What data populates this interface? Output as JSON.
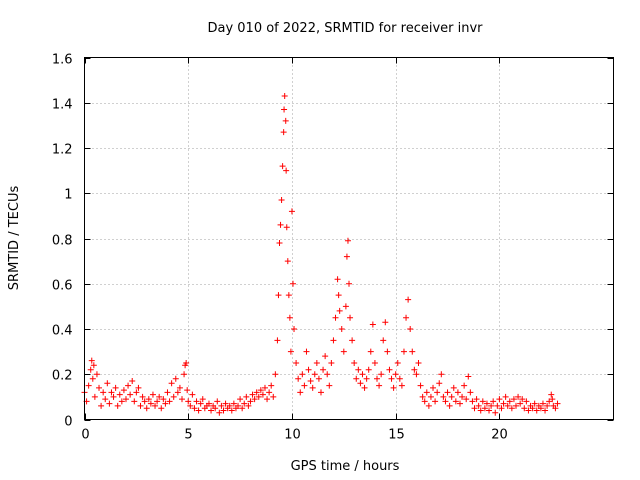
{
  "chart_data": {
    "type": "scatter",
    "title": "Day 010 of 2022, SRMTID for receiver invr",
    "xlabel": "GPS time / hours",
    "ylabel": "SRMTID / TECUs",
    "xlim": [
      0,
      25.5
    ],
    "ylim": [
      0,
      1.6
    ],
    "xticks": [
      0,
      5,
      10,
      15,
      20
    ],
    "xtick_labels": [
      "0",
      "5",
      "10",
      "15",
      "20"
    ],
    "yticks": [
      0,
      0.2,
      0.4,
      0.6,
      0.8,
      1,
      1.2,
      1.4,
      1.6
    ],
    "ytick_labels": [
      "0",
      "0.2",
      "0.4",
      "0.6",
      "0.8",
      "1",
      "1.2",
      "1.4",
      "1.6"
    ],
    "grid": true,
    "marker": "+",
    "color": "#ff0000",
    "series": [
      {
        "name": "SRMTID",
        "points": [
          [
            0.0,
            0.12
          ],
          [
            0.1,
            0.08
          ],
          [
            0.2,
            0.15
          ],
          [
            0.3,
            0.22
          ],
          [
            0.35,
            0.26
          ],
          [
            0.4,
            0.18
          ],
          [
            0.45,
            0.24
          ],
          [
            0.5,
            0.1
          ],
          [
            0.6,
            0.2
          ],
          [
            0.7,
            0.14
          ],
          [
            0.8,
            0.06
          ],
          [
            0.9,
            0.12
          ],
          [
            1.0,
            0.09
          ],
          [
            1.1,
            0.16
          ],
          [
            1.2,
            0.07
          ],
          [
            1.3,
            0.12
          ],
          [
            1.4,
            0.1
          ],
          [
            1.5,
            0.14
          ],
          [
            1.6,
            0.06
          ],
          [
            1.7,
            0.11
          ],
          [
            1.8,
            0.08
          ],
          [
            1.9,
            0.13
          ],
          [
            2.0,
            0.09
          ],
          [
            2.1,
            0.15
          ],
          [
            2.2,
            0.11
          ],
          [
            2.3,
            0.17
          ],
          [
            2.4,
            0.08
          ],
          [
            2.5,
            0.12
          ],
          [
            2.6,
            0.14
          ],
          [
            2.7,
            0.06
          ],
          [
            2.8,
            0.1
          ],
          [
            2.9,
            0.08
          ],
          [
            3.0,
            0.05
          ],
          [
            3.1,
            0.09
          ],
          [
            3.2,
            0.07
          ],
          [
            3.3,
            0.11
          ],
          [
            3.4,
            0.06
          ],
          [
            3.5,
            0.08
          ],
          [
            3.6,
            0.1
          ],
          [
            3.7,
            0.05
          ],
          [
            3.8,
            0.09
          ],
          [
            3.9,
            0.07
          ],
          [
            4.0,
            0.12
          ],
          [
            4.1,
            0.08
          ],
          [
            4.2,
            0.16
          ],
          [
            4.3,
            0.1
          ],
          [
            4.4,
            0.18
          ],
          [
            4.5,
            0.12
          ],
          [
            4.6,
            0.14
          ],
          [
            4.7,
            0.09
          ],
          [
            4.8,
            0.2
          ],
          [
            4.85,
            0.24
          ],
          [
            4.9,
            0.25
          ],
          [
            4.95,
            0.13
          ],
          [
            5.0,
            0.08
          ],
          [
            5.1,
            0.06
          ],
          [
            5.2,
            0.11
          ],
          [
            5.3,
            0.05
          ],
          [
            5.4,
            0.08
          ],
          [
            5.5,
            0.04
          ],
          [
            5.6,
            0.07
          ],
          [
            5.7,
            0.09
          ],
          [
            5.8,
            0.05
          ],
          [
            5.9,
            0.06
          ],
          [
            6.0,
            0.07
          ],
          [
            6.1,
            0.04
          ],
          [
            6.2,
            0.06
          ],
          [
            6.3,
            0.05
          ],
          [
            6.4,
            0.08
          ],
          [
            6.5,
            0.03
          ],
          [
            6.6,
            0.06
          ],
          [
            6.7,
            0.04
          ],
          [
            6.8,
            0.07
          ],
          [
            6.9,
            0.05
          ],
          [
            7.0,
            0.06
          ],
          [
            7.1,
            0.04
          ],
          [
            7.2,
            0.07
          ],
          [
            7.3,
            0.05
          ],
          [
            7.4,
            0.06
          ],
          [
            7.5,
            0.09
          ],
          [
            7.6,
            0.05
          ],
          [
            7.7,
            0.07
          ],
          [
            7.8,
            0.1
          ],
          [
            7.9,
            0.06
          ],
          [
            8.0,
            0.08
          ],
          [
            8.1,
            0.11
          ],
          [
            8.2,
            0.09
          ],
          [
            8.3,
            0.12
          ],
          [
            8.4,
            0.1
          ],
          [
            8.5,
            0.13
          ],
          [
            8.6,
            0.11
          ],
          [
            8.7,
            0.14
          ],
          [
            8.8,
            0.09
          ],
          [
            8.9,
            0.12
          ],
          [
            9.0,
            0.15
          ],
          [
            9.1,
            0.1
          ],
          [
            9.2,
            0.2
          ],
          [
            9.3,
            0.35
          ],
          [
            9.35,
            0.55
          ],
          [
            9.4,
            0.78
          ],
          [
            9.45,
            0.86
          ],
          [
            9.5,
            0.97
          ],
          [
            9.55,
            1.12
          ],
          [
            9.6,
            1.27
          ],
          [
            9.62,
            1.37
          ],
          [
            9.65,
            1.43
          ],
          [
            9.7,
            1.32
          ],
          [
            9.72,
            1.1
          ],
          [
            9.75,
            0.85
          ],
          [
            9.8,
            0.7
          ],
          [
            9.85,
            0.55
          ],
          [
            9.9,
            0.45
          ],
          [
            9.95,
            0.3
          ],
          [
            10.0,
            0.92
          ],
          [
            10.05,
            0.6
          ],
          [
            10.1,
            0.4
          ],
          [
            10.2,
            0.25
          ],
          [
            10.3,
            0.18
          ],
          [
            10.4,
            0.12
          ],
          [
            10.5,
            0.2
          ],
          [
            10.6,
            0.15
          ],
          [
            10.7,
            0.3
          ],
          [
            10.8,
            0.22
          ],
          [
            10.9,
            0.17
          ],
          [
            11.0,
            0.14
          ],
          [
            11.1,
            0.2
          ],
          [
            11.2,
            0.25
          ],
          [
            11.3,
            0.18
          ],
          [
            11.4,
            0.12
          ],
          [
            11.5,
            0.22
          ],
          [
            11.6,
            0.28
          ],
          [
            11.7,
            0.2
          ],
          [
            11.8,
            0.15
          ],
          [
            11.9,
            0.25
          ],
          [
            12.0,
            0.35
          ],
          [
            12.1,
            0.45
          ],
          [
            12.2,
            0.62
          ],
          [
            12.25,
            0.55
          ],
          [
            12.3,
            0.48
          ],
          [
            12.4,
            0.4
          ],
          [
            12.5,
            0.3
          ],
          [
            12.6,
            0.5
          ],
          [
            12.65,
            0.72
          ],
          [
            12.7,
            0.79
          ],
          [
            12.75,
            0.6
          ],
          [
            12.8,
            0.45
          ],
          [
            12.9,
            0.35
          ],
          [
            13.0,
            0.25
          ],
          [
            13.1,
            0.18
          ],
          [
            13.2,
            0.22
          ],
          [
            13.3,
            0.16
          ],
          [
            13.4,
            0.2
          ],
          [
            13.5,
            0.14
          ],
          [
            13.6,
            0.18
          ],
          [
            13.7,
            0.22
          ],
          [
            13.8,
            0.3
          ],
          [
            13.9,
            0.42
          ],
          [
            14.0,
            0.25
          ],
          [
            14.1,
            0.18
          ],
          [
            14.2,
            0.15
          ],
          [
            14.3,
            0.2
          ],
          [
            14.4,
            0.35
          ],
          [
            14.5,
            0.43
          ],
          [
            14.6,
            0.3
          ],
          [
            14.7,
            0.22
          ],
          [
            14.8,
            0.18
          ],
          [
            14.9,
            0.14
          ],
          [
            15.0,
            0.2
          ],
          [
            15.1,
            0.25
          ],
          [
            15.2,
            0.18
          ],
          [
            15.3,
            0.15
          ],
          [
            15.4,
            0.3
          ],
          [
            15.5,
            0.45
          ],
          [
            15.6,
            0.53
          ],
          [
            15.7,
            0.4
          ],
          [
            15.8,
            0.3
          ],
          [
            15.9,
            0.22
          ],
          [
            16.0,
            0.2
          ],
          [
            16.1,
            0.25
          ],
          [
            16.2,
            0.15
          ],
          [
            16.3,
            0.1
          ],
          [
            16.4,
            0.08
          ],
          [
            16.5,
            0.12
          ],
          [
            16.6,
            0.06
          ],
          [
            16.7,
            0.1
          ],
          [
            16.8,
            0.14
          ],
          [
            16.9,
            0.08
          ],
          [
            17.0,
            0.12
          ],
          [
            17.1,
            0.16
          ],
          [
            17.2,
            0.2
          ],
          [
            17.3,
            0.1
          ],
          [
            17.4,
            0.08
          ],
          [
            17.5,
            0.12
          ],
          [
            17.6,
            0.06
          ],
          [
            17.7,
            0.1
          ],
          [
            17.8,
            0.14
          ],
          [
            17.9,
            0.08
          ],
          [
            18.0,
            0.12
          ],
          [
            18.1,
            0.07
          ],
          [
            18.2,
            0.1
          ],
          [
            18.3,
            0.15
          ],
          [
            18.4,
            0.09
          ],
          [
            18.5,
            0.19
          ],
          [
            18.6,
            0.12
          ],
          [
            18.7,
            0.08
          ],
          [
            18.8,
            0.05
          ],
          [
            18.9,
            0.09
          ],
          [
            19.0,
            0.06
          ],
          [
            19.1,
            0.04
          ],
          [
            19.2,
            0.08
          ],
          [
            19.3,
            0.05
          ],
          [
            19.4,
            0.07
          ],
          [
            19.5,
            0.04
          ],
          [
            19.6,
            0.06
          ],
          [
            19.7,
            0.08
          ],
          [
            19.8,
            0.03
          ],
          [
            19.9,
            0.06
          ],
          [
            20.0,
            0.09
          ],
          [
            20.1,
            0.05
          ],
          [
            20.2,
            0.07
          ],
          [
            20.3,
            0.1
          ],
          [
            20.4,
            0.06
          ],
          [
            20.5,
            0.08
          ],
          [
            20.6,
            0.05
          ],
          [
            20.7,
            0.09
          ],
          [
            20.8,
            0.06
          ],
          [
            20.9,
            0.1
          ],
          [
            21.0,
            0.07
          ],
          [
            21.1,
            0.09
          ],
          [
            21.2,
            0.05
          ],
          [
            21.3,
            0.08
          ],
          [
            21.4,
            0.04
          ],
          [
            21.5,
            0.06
          ],
          [
            21.6,
            0.05
          ],
          [
            21.7,
            0.07
          ],
          [
            21.8,
            0.04
          ],
          [
            21.9,
            0.06
          ],
          [
            22.0,
            0.05
          ],
          [
            22.1,
            0.07
          ],
          [
            22.2,
            0.04
          ],
          [
            22.3,
            0.06
          ],
          [
            22.4,
            0.08
          ],
          [
            22.5,
            0.11
          ],
          [
            22.55,
            0.09
          ],
          [
            22.6,
            0.06
          ],
          [
            22.7,
            0.05
          ],
          [
            22.8,
            0.07
          ]
        ]
      }
    ]
  }
}
